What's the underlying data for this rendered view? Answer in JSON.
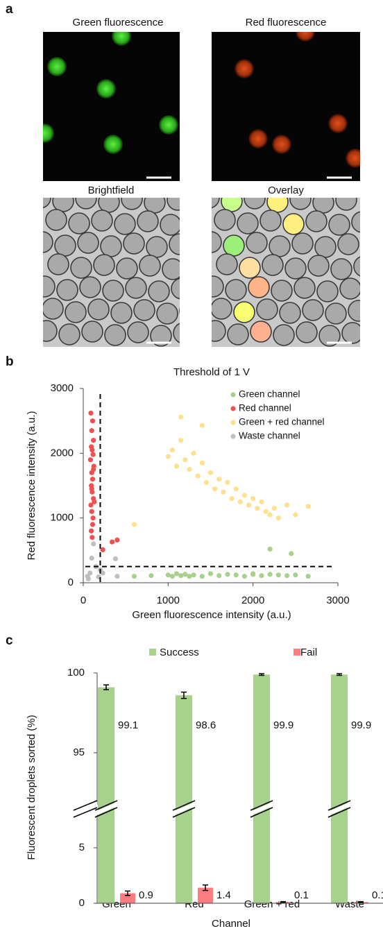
{
  "panel_labels": [
    "a",
    "b",
    "c"
  ],
  "images": {
    "titles": [
      "Green fluorescence",
      "Red fluorescence",
      "Brightfield",
      "Overlay"
    ]
  },
  "chart_data": [
    {
      "type": "scatter",
      "title": "Threshold of 1 V",
      "x_label": "Green fluorescence intensity (a.u.)",
      "y_label": "Red fluorescence intensity (a.u.)",
      "xlim": [
        0,
        3000
      ],
      "ylim": [
        0,
        3000
      ],
      "xticks": [
        0,
        1000,
        2000,
        3000
      ],
      "yticks": [
        0,
        1000,
        2000,
        3000
      ],
      "thresholds": {
        "x": 200,
        "y": 250
      },
      "legend": "upper right",
      "series": [
        {
          "name": "Green channel",
          "color": "#a9d18e",
          "x": [
            600,
            800,
            1000,
            1050,
            1100,
            1150,
            1200,
            1250,
            1300,
            1400,
            1500,
            1600,
            1700,
            1800,
            1900,
            2000,
            2000,
            2100,
            2200,
            2300,
            2400,
            2500,
            2650,
            2200,
            2450
          ],
          "y": [
            100,
            110,
            120,
            100,
            140,
            110,
            130,
            100,
            120,
            100,
            140,
            110,
            130,
            120,
            100,
            140,
            130,
            110,
            130,
            120,
            110,
            120,
            100,
            520,
            450
          ]
        },
        {
          "name": "Red channel",
          "color": "#f05050",
          "x": [
            90,
            110,
            100,
            120,
            95,
            105,
            115,
            85,
            125,
            100,
            110,
            95,
            105,
            120,
            90,
            100,
            115,
            110,
            95,
            105,
            120,
            100,
            130,
            400,
            340,
            230
          ],
          "y": [
            2620,
            2500,
            2350,
            2200,
            2100,
            2050,
            1980,
            1900,
            1800,
            1700,
            1600,
            1500,
            1400,
            1300,
            1200,
            1100,
            1000,
            900,
            800,
            700,
            1750,
            1450,
            1250,
            660,
            630,
            510
          ]
        },
        {
          "name": "Green + red channel",
          "color": "#ffe08f",
          "x": [
            1000,
            1050,
            1100,
            1150,
            1200,
            1250,
            1300,
            1350,
            1400,
            1450,
            1500,
            1550,
            1600,
            1650,
            1700,
            1750,
            1800,
            1850,
            1900,
            1950,
            2000,
            2050,
            2100,
            2150,
            2200,
            2250,
            2300,
            2400,
            2500,
            2650,
            1150,
            1400,
            600
          ],
          "y": [
            1950,
            2050,
            1800,
            2200,
            1900,
            1750,
            2000,
            1650,
            1850,
            1550,
            1700,
            1450,
            1600,
            1400,
            1550,
            1300,
            1450,
            1250,
            1350,
            1200,
            1300,
            1150,
            1250,
            1100,
            1050,
            1150,
            1000,
            1200,
            1050,
            1180,
            2560,
            2430,
            900
          ]
        },
        {
          "name": "Waste channel",
          "color": "#bfbfbf",
          "x": [
            50,
            80,
            150,
            200,
            230,
            100,
            120,
            380,
            400,
            180,
            60
          ],
          "y": [
            100,
            150,
            250,
            200,
            150,
            380,
            600,
            370,
            100,
            90,
            60
          ]
        }
      ]
    },
    {
      "type": "bar",
      "y_label": "Fluorescent droplets sorted (%)",
      "x_label": "Channel",
      "categories": [
        "Green",
        "Red",
        "Green + red",
        "Waste"
      ],
      "ylim": [
        0,
        100
      ],
      "ybreak": [
        8,
        92
      ],
      "yticks": [
        0,
        5,
        95,
        100
      ],
      "legend": "top",
      "series": [
        {
          "name": "Success",
          "color": "#a9d18e",
          "values": [
            99.1,
            98.6,
            99.9,
            99.9
          ],
          "errors": [
            0.15,
            0.2,
            0.05,
            0.05
          ]
        },
        {
          "name": "Fail",
          "color": "#ff7c80",
          "values": [
            0.9,
            1.4,
            0.1,
            0.1
          ],
          "errors": [
            0.2,
            0.25,
            0.05,
            0.05
          ]
        }
      ]
    }
  ]
}
